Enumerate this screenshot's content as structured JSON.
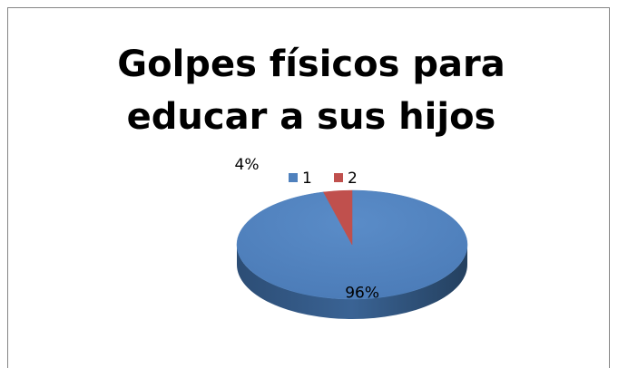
{
  "chart_data": {
    "type": "pie",
    "title": "Golpes físicos para educar a sus hijos",
    "categories": [
      "1",
      "2"
    ],
    "values": [
      96,
      4
    ],
    "value_labels": [
      "96%",
      "4%"
    ],
    "colors": [
      "#4f81bd",
      "#c0504d"
    ],
    "legend": "top"
  }
}
